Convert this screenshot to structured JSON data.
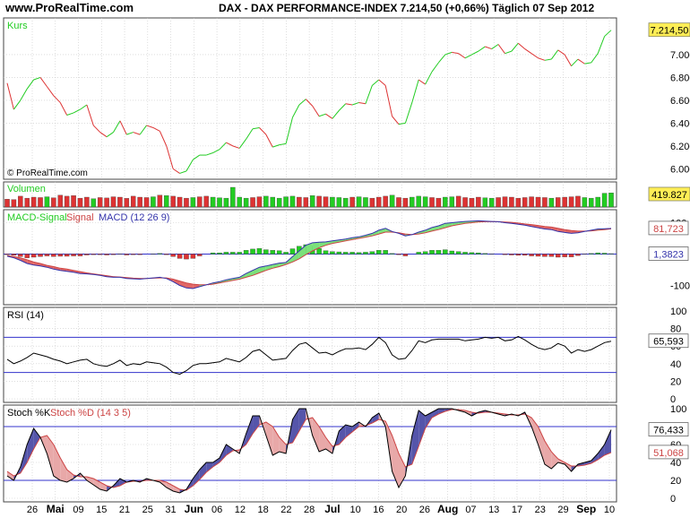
{
  "header": {
    "site": "www.ProRealTime.com",
    "title": "DAX - DAX PERFORMANCE-INDEX   7.214,50 (+0,66%)   Täglich  07 Sep 2012"
  },
  "watermark": "© ProRealTime.com",
  "colors": {
    "up": "#22cc22",
    "down": "#dd3333",
    "macd": "#3333aa",
    "signal": "#cc4444",
    "grid": "#c8c8c8",
    "level": "#3333cc"
  },
  "chart_data": [
    {
      "type": "line",
      "panel": "price",
      "title": "Kurs",
      "last_label": "7.214,50",
      "yticks": [
        "6.000",
        "6.200",
        "6.400",
        "6.600",
        "6.800",
        "7.000"
      ],
      "ylim": [
        5940,
        7290
      ],
      "values": [
        6750,
        6520,
        6600,
        6700,
        6780,
        6800,
        6720,
        6640,
        6580,
        6470,
        6490,
        6520,
        6560,
        6380,
        6320,
        6280,
        6320,
        6420,
        6300,
        6320,
        6300,
        6380,
        6360,
        6330,
        6200,
        6000,
        5960,
        5980,
        6080,
        6120,
        6120,
        6140,
        6170,
        6230,
        6200,
        6180,
        6260,
        6350,
        6360,
        6300,
        6190,
        6210,
        6220,
        6450,
        6560,
        6610,
        6550,
        6460,
        6480,
        6440,
        6510,
        6570,
        6560,
        6580,
        6570,
        6730,
        6780,
        6730,
        6460,
        6390,
        6400,
        6580,
        6780,
        6740,
        6850,
        6930,
        7000,
        7020,
        7010,
        6970,
        7000,
        7030,
        7070,
        7050,
        7090,
        7010,
        7030,
        7100,
        7050,
        7010,
        6970,
        6950,
        6960,
        7040,
        7000,
        6900,
        6960,
        6920,
        6930,
        7010,
        7160,
        7214
      ]
    },
    {
      "type": "bar",
      "panel": "volume",
      "title": "Volumen",
      "last_label": "419.827",
      "values": [
        40,
        38,
        55,
        45,
        50,
        48,
        52,
        47,
        60,
        55,
        58,
        45,
        50,
        42,
        48,
        46,
        52,
        50,
        44,
        55,
        50,
        48,
        52,
        60,
        58,
        55,
        50,
        45,
        48,
        52,
        55,
        50,
        47,
        45,
        100,
        50,
        45,
        48,
        52,
        55,
        50,
        45,
        52,
        55,
        50,
        48,
        58,
        55,
        52,
        50,
        48,
        45,
        50,
        52,
        48,
        45,
        50,
        55,
        60,
        48,
        45,
        50,
        55,
        52,
        48,
        45,
        50,
        52,
        55,
        48,
        45,
        50,
        47,
        45,
        48,
        52,
        50,
        45,
        48,
        52,
        50,
        48,
        45,
        48,
        50,
        52,
        55,
        48,
        45,
        50,
        70,
        72
      ],
      "colors": "ddddddudddddduddddddddududddudduuuuuudduuuuuddudduuuduudddudduuudduudddduuddddddddudddduuuuuu"
    },
    {
      "type": "line",
      "panel": "macd",
      "title_parts": [
        "MACD-Signal",
        "Signal",
        "MACD (12 26 9)"
      ],
      "yticks": [
        "100",
        "-100"
      ],
      "ylim": [
        -150,
        130
      ],
      "last_labels": [
        "81,723",
        "1,3823"
      ],
      "macd": [
        -7,
        -12,
        -20,
        -30,
        -35,
        -38,
        -42,
        -48,
        -52,
        -55,
        -58,
        -62,
        -63,
        -65,
        -68,
        -72,
        -74,
        -74,
        -78,
        -79,
        -80,
        -78,
        -76,
        -74,
        -78,
        -88,
        -100,
        -108,
        -110,
        -104,
        -98,
        -92,
        -88,
        -82,
        -78,
        -74,
        -62,
        -52,
        -42,
        -38,
        -33,
        -29,
        -27,
        -8,
        10,
        28,
        36,
        38,
        39,
        42,
        45,
        48,
        52,
        55,
        60,
        66,
        76,
        82,
        72,
        66,
        58,
        62,
        70,
        76,
        85,
        90,
        98,
        100,
        102,
        104,
        105,
        106,
        105,
        104,
        103,
        100,
        98,
        95,
        92,
        88,
        84,
        80,
        78,
        72,
        69,
        66,
        68,
        72,
        76,
        80,
        81,
        81.7
      ],
      "signal": [
        -5,
        -8,
        -12,
        -18,
        -25,
        -30,
        -36,
        -40,
        -45,
        -48,
        -52,
        -56,
        -60,
        -63,
        -66,
        -69,
        -72,
        -73,
        -75,
        -77,
        -78,
        -78,
        -77,
        -76,
        -76,
        -80,
        -86,
        -92,
        -96,
        -98,
        -98,
        -96,
        -92,
        -88,
        -84,
        -80,
        -74,
        -68,
        -60,
        -52,
        -45,
        -40,
        -33,
        -25,
        -15,
        -2,
        10,
        20,
        28,
        34,
        38,
        42,
        46,
        50,
        54,
        58,
        64,
        70,
        70,
        68,
        64,
        62,
        64,
        68,
        73,
        78,
        84,
        90,
        94,
        98,
        100,
        102,
        103,
        103,
        103,
        102,
        101,
        99,
        96,
        94,
        91,
        88,
        86,
        82,
        78,
        75,
        73,
        73,
        74,
        76,
        78,
        80.3
      ]
    },
    {
      "type": "line",
      "panel": "rsi",
      "title": "RSI (14)",
      "yticks": [
        "100",
        "80",
        "60",
        "40",
        "20",
        "0"
      ],
      "levels": [
        70,
        30
      ],
      "ylim": [
        0,
        100
      ],
      "last_label": "65,593",
      "values": [
        45,
        40,
        43,
        47,
        52,
        50,
        48,
        45,
        43,
        40,
        42,
        44,
        45,
        40,
        38,
        37,
        40,
        44,
        38,
        40,
        39,
        42,
        41,
        40,
        36,
        30,
        28,
        32,
        38,
        40,
        40,
        41,
        42,
        46,
        44,
        42,
        47,
        54,
        56,
        50,
        44,
        45,
        46,
        55,
        62,
        64,
        58,
        52,
        53,
        50,
        54,
        57,
        57,
        58,
        56,
        62,
        70,
        64,
        50,
        45,
        46,
        55,
        66,
        64,
        67,
        68,
        68,
        68,
        68,
        66,
        67,
        68,
        70,
        69,
        70,
        66,
        67,
        71,
        67,
        62,
        58,
        56,
        58,
        63,
        60,
        52,
        56,
        54,
        56,
        60,
        64,
        65.6
      ]
    },
    {
      "type": "line",
      "panel": "stoch",
      "title_parts": [
        "Stoch %K",
        "Stoch %D (14 3 5)"
      ],
      "yticks": [
        "100",
        "80",
        "60",
        "40",
        "20",
        "0"
      ],
      "levels": [
        80,
        20
      ],
      "ylim": [
        0,
        100
      ],
      "last_labels": [
        "76,433",
        "51,068"
      ],
      "k": [
        25,
        20,
        35,
        60,
        78,
        68,
        50,
        25,
        20,
        18,
        22,
        28,
        20,
        15,
        10,
        8,
        14,
        22,
        18,
        20,
        18,
        22,
        20,
        18,
        12,
        8,
        6,
        10,
        22,
        32,
        40,
        40,
        45,
        60,
        55,
        50,
        72,
        92,
        92,
        70,
        48,
        52,
        50,
        88,
        100,
        100,
        70,
        52,
        55,
        50,
        75,
        82,
        80,
        85,
        80,
        90,
        95,
        80,
        30,
        12,
        25,
        70,
        98,
        92,
        96,
        100,
        100,
        100,
        98,
        96,
        92,
        96,
        98,
        96,
        94,
        92,
        94,
        92,
        96,
        80,
        60,
        38,
        33,
        40,
        38,
        30,
        38,
        40,
        42,
        50,
        60,
        76.4
      ],
      "d": [
        30,
        25,
        28,
        40,
        55,
        68,
        70,
        60,
        45,
        32,
        26,
        24,
        24,
        22,
        18,
        14,
        12,
        14,
        18,
        19,
        19,
        20,
        20,
        20,
        18,
        14,
        10,
        9,
        14,
        21,
        29,
        35,
        40,
        48,
        53,
        54,
        60,
        72,
        82,
        85,
        80,
        68,
        60,
        62,
        75,
        88,
        90,
        80,
        68,
        58,
        60,
        68,
        74,
        80,
        81,
        84,
        88,
        86,
        70,
        50,
        35,
        38,
        58,
        78,
        90,
        94,
        97,
        99,
        99,
        98,
        96,
        95,
        96,
        96,
        95,
        94,
        93,
        93,
        94,
        90,
        80,
        64,
        52,
        44,
        40,
        36,
        36,
        37,
        39,
        43,
        48,
        51.1
      ]
    }
  ],
  "xaxis": [
    {
      "label": "26",
      "bold": false
    },
    {
      "label": "Mai",
      "bold": true
    },
    {
      "label": "09",
      "bold": false
    },
    {
      "label": "15",
      "bold": false
    },
    {
      "label": "21",
      "bold": false
    },
    {
      "label": "25",
      "bold": false
    },
    {
      "label": "31",
      "bold": false
    },
    {
      "label": "Jun",
      "bold": true
    },
    {
      "label": "06",
      "bold": false
    },
    {
      "label": "12",
      "bold": false
    },
    {
      "label": "18",
      "bold": false
    },
    {
      "label": "22",
      "bold": false
    },
    {
      "label": "28",
      "bold": false
    },
    {
      "label": "Jul",
      "bold": true
    },
    {
      "label": "10",
      "bold": false
    },
    {
      "label": "16",
      "bold": false
    },
    {
      "label": "20",
      "bold": false
    },
    {
      "label": "26",
      "bold": false
    },
    {
      "label": "Aug",
      "bold": true
    },
    {
      "label": "07",
      "bold": false
    },
    {
      "label": "13",
      "bold": false
    },
    {
      "label": "17",
      "bold": false
    },
    {
      "label": "23",
      "bold": false
    },
    {
      "label": "29",
      "bold": false
    },
    {
      "label": "Sep",
      "bold": true
    },
    {
      "label": "10",
      "bold": false
    }
  ]
}
